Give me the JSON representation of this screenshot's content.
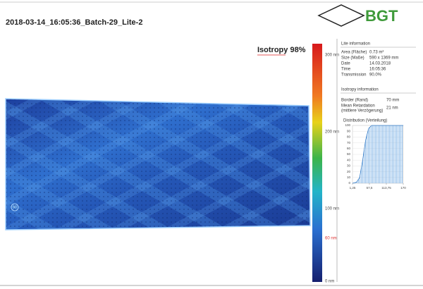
{
  "header": {
    "title": "2018-03-14_16:05:36_Batch-29_Lite-2",
    "logo": "BGT"
  },
  "isotropy_label": "Isotropy 98%",
  "corner_marker": "60",
  "scale": {
    "labels": [
      "300 nm",
      "200 nm",
      "100 nm",
      "60 nm",
      "0 nm"
    ]
  },
  "lite_info": {
    "heading": "Lite information",
    "rows": [
      {
        "label": "Area (Fläche)",
        "value": "0.73 m²"
      },
      {
        "label": "Size (Maße)",
        "value": "590 x 1369 mm"
      },
      {
        "label": "Date",
        "value": "14.03.2018"
      },
      {
        "label": "Time",
        "value": "16:05:36"
      },
      {
        "label": "Transmission",
        "value": "90.0%"
      }
    ]
  },
  "isotropy_info": {
    "heading": "Isotropy information",
    "border": {
      "label": "Border (Rand)",
      "value": "70 mm"
    },
    "retardation": {
      "label": "Mean Retardation",
      "sublabel": "(mittlere Verzögerung)",
      "value": "21 nm"
    }
  },
  "distribution": {
    "title": "Distribution (Verteilung)",
    "xlim": [
      1.25,
      170
    ],
    "xticks": [
      {
        "value": 1.25,
        "label": "1,25"
      },
      {
        "value": 57.5,
        "label": "57,5"
      },
      {
        "value": 113.75,
        "label": "113,75"
      },
      {
        "value": 170,
        "label": "170"
      }
    ],
    "ylim": [
      0,
      100
    ],
    "yticks": [
      0,
      10,
      20,
      30,
      40,
      50,
      60,
      70,
      80,
      90,
      100
    ],
    "x": [
      1.25,
      15,
      25,
      35,
      45,
      55,
      65,
      170
    ],
    "values": [
      0,
      2,
      10,
      40,
      75,
      95,
      100,
      100
    ]
  }
}
